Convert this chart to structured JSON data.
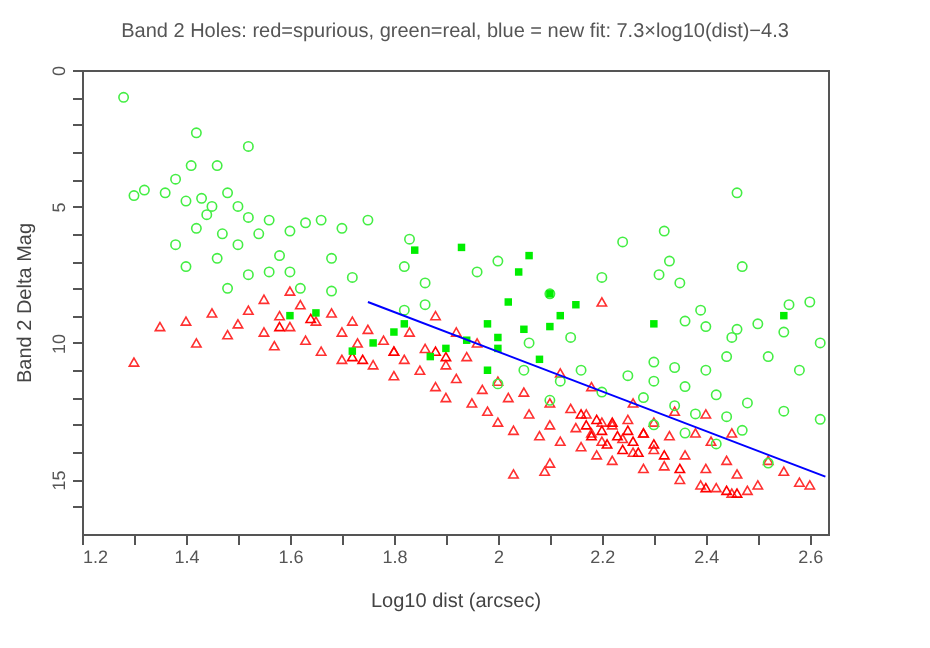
{
  "chart_data": {
    "type": "scatter",
    "title": "Band 2 Holes: red=spurious, green=real, blue = new fit: 7.3×log10(dist)−4.3",
    "xlabel": "Log10 dist (arcsec)",
    "ylabel": "Band 2 Delta Mag",
    "xlim": [
      1.2,
      2.635
    ],
    "ylim": [
      17,
      0
    ],
    "xticks": [
      1.2,
      {
        "value": 1.3,
        "label": null
      },
      1.4,
      {
        "value": 1.5,
        "label": null
      },
      1.6,
      {
        "value": 1.7,
        "label": null
      },
      1.8,
      {
        "value": 1.9,
        "label": null
      },
      2,
      {
        "value": 2.1,
        "label": null
      },
      2.2,
      {
        "value": 2.3,
        "label": null
      },
      2.4,
      {
        "value": 2.5,
        "label": null
      },
      2.6
    ],
    "yticks": [
      0,
      {
        "value": 1,
        "label": null
      },
      {
        "value": 2,
        "label": null
      },
      {
        "value": 3,
        "label": null
      },
      {
        "value": 4,
        "label": null
      },
      5,
      {
        "value": 6,
        "label": null
      },
      {
        "value": 7,
        "label": null
      },
      {
        "value": 8,
        "label": null
      },
      {
        "value": 9,
        "label": null
      },
      10,
      {
        "value": 11,
        "label": null
      },
      {
        "value": 12,
        "label": null
      },
      {
        "value": 13,
        "label": null
      },
      {
        "value": 14,
        "label": null
      },
      15,
      {
        "value": 16,
        "label": null
      }
    ],
    "grid": false,
    "series": [
      {
        "color": "#ff3030",
        "marker": "triangle",
        "x": [
          1.3,
          1.35,
          1.4,
          1.42,
          1.45,
          1.48,
          1.5,
          1.52,
          1.55,
          1.57,
          1.58,
          1.6,
          1.62,
          1.63,
          1.65,
          1.66,
          1.68,
          1.7,
          1.7,
          1.72,
          1.73,
          1.75,
          1.76,
          1.78,
          1.8,
          1.8,
          1.82,
          1.83,
          1.85,
          1.86,
          1.88,
          1.9,
          1.9,
          1.92,
          1.94,
          1.95,
          1.97,
          1.98,
          2.0,
          2.0,
          2.02,
          2.03,
          2.05,
          2.06,
          2.08,
          2.1,
          2.1,
          2.12,
          2.14,
          2.15,
          2.16,
          2.17,
          2.18,
          2.19,
          2.2,
          2.2,
          2.22,
          2.22,
          2.24,
          2.25,
          2.26,
          2.28,
          2.28,
          2.3,
          2.3,
          2.32,
          2.33,
          2.35,
          2.36,
          2.38,
          2.39,
          2.4,
          2.41,
          2.42,
          2.44,
          2.45,
          2.46,
          2.48,
          2.5,
          2.52,
          2.55,
          2.58,
          2.6,
          2.03,
          2.1,
          2.09,
          1.92,
          2.2,
          1.6,
          1.55,
          1.88,
          1.96,
          2.12,
          2.18,
          2.26,
          2.34,
          2.4,
          2.45
        ],
        "values": [
          10.7,
          9.4,
          9.2,
          10.0,
          8.9,
          9.7,
          9.3,
          8.8,
          9.6,
          10.1,
          9.0,
          9.4,
          8.6,
          9.9,
          9.2,
          10.3,
          8.9,
          9.6,
          10.6,
          9.2,
          10.0,
          9.5,
          10.8,
          9.9,
          10.3,
          11.2,
          10.6,
          9.6,
          11.0,
          10.2,
          11.6,
          10.8,
          12.0,
          11.3,
          10.5,
          12.2,
          11.7,
          12.5,
          11.4,
          12.9,
          12.0,
          13.2,
          11.8,
          12.6,
          13.4,
          12.2,
          13.0,
          13.6,
          12.4,
          13.1,
          13.8,
          12.6,
          13.3,
          14.1,
          12.9,
          13.6,
          13.0,
          14.3,
          13.5,
          12.8,
          14.0,
          13.3,
          14.6,
          13.9,
          12.9,
          14.5,
          13.4,
          15.0,
          14.1,
          13.3,
          15.2,
          14.6,
          13.6,
          15.3,
          14.3,
          15.5,
          14.8,
          15.4,
          15.2,
          14.3,
          14.7,
          15.1,
          15.2,
          14.8,
          14.4,
          14.7,
          9.6,
          8.5,
          8.1,
          8.4,
          9.0,
          10.0,
          11.1,
          11.6,
          12.2,
          12.5,
          12.6,
          13.3
        ]
      },
      {
        "color": "#ff0000",
        "marker": "triangle",
        "x": [
          1.58,
          1.64,
          1.72,
          1.74,
          1.8,
          1.88,
          1.9,
          2.16,
          2.17,
          2.18,
          2.19,
          2.2,
          2.21,
          2.22,
          2.23,
          2.24,
          2.25,
          2.26,
          2.27,
          2.28,
          2.3,
          2.32,
          2.35,
          2.4,
          2.44,
          2.46
        ],
        "values": [
          9.4,
          9.1,
          10.5,
          10.6,
          10.3,
          10.3,
          10.5,
          12.6,
          13.0,
          13.4,
          12.8,
          13.2,
          13.7,
          12.9,
          13.4,
          13.9,
          13.2,
          13.6,
          14.0,
          13.3,
          13.7,
          14.1,
          14.6,
          15.3,
          15.4,
          15.5
        ]
      },
      {
        "color": "#44ee44",
        "marker": "circle",
        "x": [
          1.28,
          1.42,
          1.52,
          1.41,
          1.46,
          1.38,
          1.32,
          1.3,
          1.36,
          1.4,
          1.43,
          1.48,
          1.45,
          1.44,
          1.5,
          1.52,
          1.56,
          1.42,
          1.47,
          1.38,
          1.54,
          1.6,
          1.63,
          1.66,
          1.75,
          1.7,
          1.5,
          1.58,
          1.46,
          1.4,
          1.52,
          1.56,
          1.6,
          1.68,
          1.72,
          1.83,
          1.48,
          1.62,
          1.68,
          1.82,
          1.86,
          1.96,
          1.82,
          1.86,
          2.46,
          2.32,
          2.24,
          2.33,
          2.31,
          2.47,
          2.2,
          2.0,
          2.1,
          2.35,
          2.39,
          2.36,
          2.4,
          2.46,
          2.5,
          2.45,
          2.44,
          2.55,
          2.62,
          2.52,
          2.58,
          2.3,
          2.34,
          2.25,
          2.4,
          2.16,
          2.12,
          2.2,
          2.3,
          2.36,
          2.42,
          2.48,
          2.55,
          2.62,
          2.28,
          2.34,
          2.38,
          2.44,
          2.3,
          2.36,
          2.42,
          2.47,
          2.52,
          2.0,
          2.1,
          2.05,
          2.14,
          2.06,
          2.56,
          2.6
        ],
        "values": [
          1.0,
          2.3,
          2.8,
          3.5,
          3.5,
          4.0,
          4.4,
          4.6,
          4.5,
          4.8,
          4.7,
          4.5,
          5.0,
          5.3,
          5.0,
          5.4,
          5.5,
          5.8,
          6.0,
          6.4,
          6.0,
          5.9,
          5.6,
          5.5,
          5.5,
          5.8,
          6.4,
          6.8,
          6.9,
          7.2,
          7.5,
          7.4,
          7.4,
          6.9,
          7.6,
          6.2,
          8.0,
          8.0,
          8.1,
          7.2,
          7.8,
          7.4,
          8.8,
          8.6,
          4.5,
          5.9,
          6.3,
          7.0,
          7.5,
          7.2,
          7.6,
          7.0,
          8.2,
          7.8,
          8.8,
          9.2,
          9.4,
          9.5,
          9.3,
          9.8,
          10.5,
          9.6,
          10.0,
          10.5,
          11.0,
          10.7,
          10.9,
          11.2,
          11.0,
          11.0,
          11.4,
          11.8,
          11.4,
          11.6,
          11.9,
          12.2,
          12.5,
          12.8,
          12.0,
          12.3,
          12.6,
          12.7,
          13.0,
          13.3,
          13.7,
          13.2,
          14.4,
          11.5,
          12.1,
          11.0,
          9.8,
          10.0,
          8.6,
          8.5
        ]
      },
      {
        "color": "#00ee00",
        "marker": "square",
        "x": [
          1.84,
          1.93,
          2.06,
          2.04,
          2.1,
          2.02,
          2.12,
          2.1,
          1.98,
          2.05,
          2.0,
          1.94,
          2.15,
          1.9,
          1.87,
          2.0,
          2.08,
          1.98,
          1.82,
          1.8,
          1.76,
          1.72,
          2.3,
          2.55,
          1.65,
          1.6
        ],
        "values": [
          6.6,
          6.5,
          6.8,
          7.4,
          8.2,
          8.5,
          9.0,
          9.4,
          9.3,
          9.5,
          9.8,
          9.9,
          8.6,
          10.2,
          10.5,
          10.2,
          10.6,
          11.0,
          9.3,
          9.6,
          10.0,
          10.3,
          9.3,
          9.0,
          8.9,
          9.0
        ]
      },
      {
        "type": "line",
        "color": "#0000ff",
        "x": [
          1.75,
          2.63
        ],
        "values": [
          8.5,
          14.9
        ],
        "line_style": "solid"
      }
    ]
  }
}
